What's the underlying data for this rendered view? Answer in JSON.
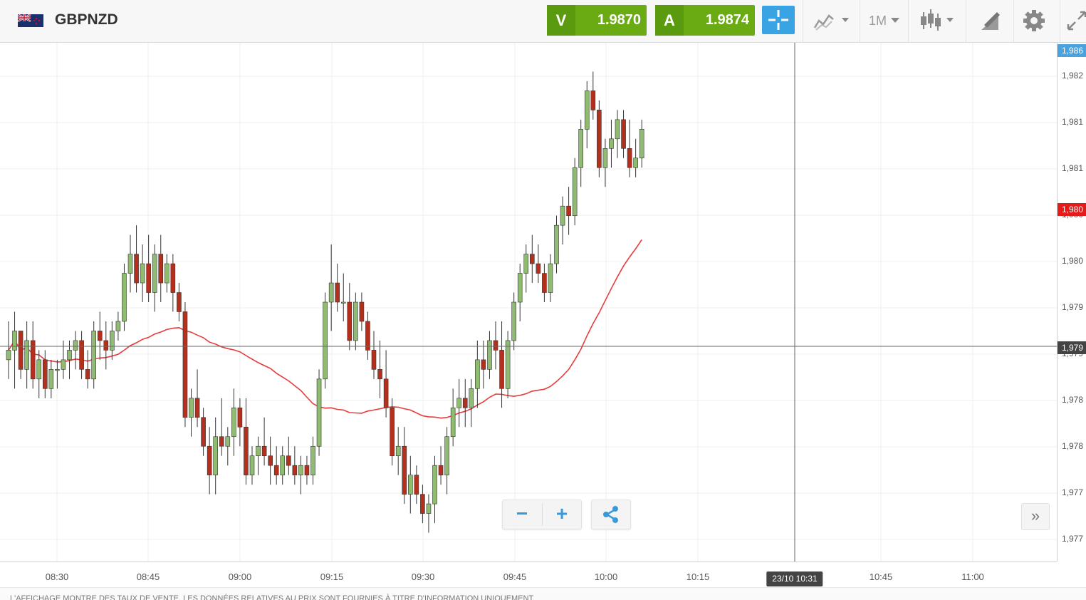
{
  "header": {
    "symbol": "GBPNZD",
    "sell_label": "V",
    "sell_price": "1.9870",
    "buy_label": "A",
    "buy_price": "1.9874",
    "timeframe": "1M"
  },
  "icons": [
    "flag-icon",
    "crosshair-icon",
    "chart-type-icon",
    "candles-icon",
    "drawing-icon",
    "gear-icon",
    "expand-icon",
    "share-icon"
  ],
  "colors": {
    "sell": "#6aaa13",
    "buy": "#6aaa13",
    "up": "#8fbc70",
    "down": "#b5301c",
    "ma": "#e83b3b",
    "ask_tag": "#4aa3df",
    "last_tag": "#e31b1b",
    "cross_tag": "#444444"
  },
  "price_axis": {
    "ticks": [
      "1,982",
      "1,981",
      "1,981",
      "1,980",
      "1,980",
      "1,979",
      "1,979",
      "1,978",
      "1,978",
      "1,977",
      "1,977"
    ],
    "ask_tag": "1,986",
    "last_tag": "1,980",
    "cross_tag": "1,979"
  },
  "time_axis": {
    "ticks": [
      "08:30",
      "08:45",
      "09:00",
      "09:15",
      "09:30",
      "09:45",
      "10:00",
      "10:15",
      "10:45",
      "11:00"
    ],
    "cursor_label": "23/10 10:31"
  },
  "zoom": {
    "minus": "−",
    "plus": "+"
  },
  "expand_label": "»",
  "footer": {
    "disclaimer": "L'AFFICHAGE MONTRE DES TAUX DE VENTE. LES DONNÉES RELATIVES AU PRIX SONT FOURNIES À TITRE D'INFORMATION UNIQUEMENT."
  },
  "chart_data": {
    "type": "candlestick",
    "interval": "1M",
    "moving_average": {
      "color": "#e83b3b"
    },
    "ohlc": [
      [
        1.9793,
        1.9797,
        1.9791,
        1.9794
      ],
      [
        1.9794,
        1.9798,
        1.979,
        1.9796
      ],
      [
        1.9796,
        1.9796,
        1.9791,
        1.9792
      ],
      [
        1.9792,
        1.9797,
        1.979,
        1.9795
      ],
      [
        1.9795,
        1.9797,
        1.979,
        1.9791
      ],
      [
        1.9791,
        1.9794,
        1.9789,
        1.9793
      ],
      [
        1.9793,
        1.9794,
        1.9789,
        1.979
      ],
      [
        1.979,
        1.9793,
        1.9789,
        1.9792
      ],
      [
        1.9792,
        1.9793,
        1.979,
        1.9792
      ],
      [
        1.9792,
        1.9795,
        1.9791,
        1.9793
      ],
      [
        1.9793,
        1.9795,
        1.9791,
        1.9794
      ],
      [
        1.9794,
        1.9796,
        1.9792,
        1.9795
      ],
      [
        1.9795,
        1.9796,
        1.9791,
        1.9792
      ],
      [
        1.9792,
        1.9794,
        1.979,
        1.9791
      ],
      [
        1.9791,
        1.9797,
        1.979,
        1.9796
      ],
      [
        1.9796,
        1.9798,
        1.9793,
        1.9795
      ],
      [
        1.9795,
        1.9797,
        1.9792,
        1.9794
      ],
      [
        1.9794,
        1.9797,
        1.9793,
        1.9796
      ],
      [
        1.9796,
        1.9798,
        1.9795,
        1.9797
      ],
      [
        1.9797,
        1.9803,
        1.9796,
        1.9802
      ],
      [
        1.9802,
        1.9806,
        1.98,
        1.9804
      ],
      [
        1.9804,
        1.9807,
        1.98,
        1.9801
      ],
      [
        1.9801,
        1.9805,
        1.9799,
        1.9803
      ],
      [
        1.9803,
        1.9806,
        1.9799,
        1.98
      ],
      [
        1.98,
        1.9805,
        1.9798,
        1.9804
      ],
      [
        1.9804,
        1.9806,
        1.9799,
        1.9801
      ],
      [
        1.9801,
        1.9804,
        1.98,
        1.9803
      ],
      [
        1.9803,
        1.9804,
        1.9798,
        1.98
      ],
      [
        1.98,
        1.9801,
        1.9797,
        1.9798
      ],
      [
        1.9798,
        1.9799,
        1.9786,
        1.9787
      ],
      [
        1.9787,
        1.979,
        1.9785,
        1.9789
      ],
      [
        1.9789,
        1.9792,
        1.9786,
        1.9787
      ],
      [
        1.9787,
        1.9788,
        1.9783,
        1.9784
      ],
      [
        1.9784,
        1.9786,
        1.9779,
        1.9781
      ],
      [
        1.9781,
        1.9787,
        1.9779,
        1.9785
      ],
      [
        1.9785,
        1.9789,
        1.9783,
        1.9784
      ],
      [
        1.9784,
        1.9786,
        1.9782,
        1.9785
      ],
      [
        1.9785,
        1.979,
        1.9783,
        1.9788
      ],
      [
        1.9788,
        1.9789,
        1.9784,
        1.9786
      ],
      [
        1.9786,
        1.9789,
        1.978,
        1.9781
      ],
      [
        1.9781,
        1.9784,
        1.978,
        1.9783
      ],
      [
        1.9783,
        1.9785,
        1.9781,
        1.9784
      ],
      [
        1.9784,
        1.9787,
        1.9782,
        1.9783
      ],
      [
        1.9783,
        1.9785,
        1.978,
        1.9782
      ],
      [
        1.9782,
        1.9784,
        1.978,
        1.9781
      ],
      [
        1.9781,
        1.9784,
        1.978,
        1.9783
      ],
      [
        1.9783,
        1.9785,
        1.9781,
        1.9782
      ],
      [
        1.9782,
        1.9784,
        1.978,
        1.9781
      ],
      [
        1.9781,
        1.9783,
        1.9779,
        1.9782
      ],
      [
        1.9782,
        1.9783,
        1.978,
        1.9781
      ],
      [
        1.9781,
        1.9785,
        1.978,
        1.9784
      ],
      [
        1.9784,
        1.9792,
        1.9783,
        1.9791
      ],
      [
        1.9791,
        1.98,
        1.979,
        1.9799
      ],
      [
        1.9799,
        1.9805,
        1.9796,
        1.9801
      ],
      [
        1.9801,
        1.9803,
        1.9798,
        1.9799
      ],
      [
        1.9799,
        1.9802,
        1.9797,
        1.9799
      ],
      [
        1.9799,
        1.9801,
        1.9794,
        1.9795
      ],
      [
        1.9795,
        1.98,
        1.9794,
        1.9799
      ],
      [
        1.9799,
        1.98,
        1.9796,
        1.9797
      ],
      [
        1.9797,
        1.9798,
        1.9793,
        1.9794
      ],
      [
        1.9794,
        1.9796,
        1.9791,
        1.9792
      ],
      [
        1.9792,
        1.9795,
        1.9789,
        1.9791
      ],
      [
        1.9791,
        1.9794,
        1.9787,
        1.9788
      ],
      [
        1.9788,
        1.9789,
        1.9782,
        1.9783
      ],
      [
        1.9783,
        1.9786,
        1.9781,
        1.9784
      ],
      [
        1.9784,
        1.9786,
        1.9778,
        1.9779
      ],
      [
        1.9779,
        1.9783,
        1.9777,
        1.9781
      ],
      [
        1.9781,
        1.9782,
        1.9778,
        1.9779
      ],
      [
        1.9779,
        1.978,
        1.9776,
        1.9777
      ],
      [
        1.9777,
        1.9779,
        1.9775,
        1.9778
      ],
      [
        1.9778,
        1.9783,
        1.9776,
        1.9782
      ],
      [
        1.9782,
        1.9784,
        1.978,
        1.9781
      ],
      [
        1.9781,
        1.9786,
        1.9779,
        1.9785
      ],
      [
        1.9785,
        1.979,
        1.9784,
        1.9788
      ],
      [
        1.9788,
        1.9791,
        1.9786,
        1.9789
      ],
      [
        1.9789,
        1.9791,
        1.9786,
        1.9788
      ],
      [
        1.9788,
        1.9791,
        1.9786,
        1.979
      ],
      [
        1.979,
        1.9795,
        1.9788,
        1.9793
      ],
      [
        1.9793,
        1.9795,
        1.979,
        1.9792
      ],
      [
        1.9792,
        1.9796,
        1.9791,
        1.9795
      ],
      [
        1.9795,
        1.9797,
        1.9792,
        1.9794
      ],
      [
        1.9794,
        1.9797,
        1.9788,
        1.979
      ],
      [
        1.979,
        1.9796,
        1.9789,
        1.9795
      ],
      [
        1.9795,
        1.98,
        1.9794,
        1.9799
      ],
      [
        1.9799,
        1.9803,
        1.9797,
        1.9802
      ],
      [
        1.9802,
        1.9805,
        1.98,
        1.9804
      ],
      [
        1.9804,
        1.9806,
        1.9801,
        1.9803
      ],
      [
        1.9803,
        1.9805,
        1.9801,
        1.9802
      ],
      [
        1.9802,
        1.9803,
        1.9799,
        1.98
      ],
      [
        1.98,
        1.9804,
        1.9799,
        1.9803
      ],
      [
        1.9803,
        1.9808,
        1.9802,
        1.9807
      ],
      [
        1.9807,
        1.981,
        1.9805,
        1.9809
      ],
      [
        1.9809,
        1.9811,
        1.9806,
        1.9808
      ],
      [
        1.9808,
        1.9814,
        1.9807,
        1.9813
      ],
      [
        1.9813,
        1.9818,
        1.9811,
        1.9817
      ],
      [
        1.9817,
        1.9822,
        1.9815,
        1.9821
      ],
      [
        1.9821,
        1.9823,
        1.9818,
        1.9819
      ],
      [
        1.9819,
        1.982,
        1.9812,
        1.9813
      ],
      [
        1.9813,
        1.9816,
        1.9811,
        1.9815
      ],
      [
        1.9815,
        1.9818,
        1.9813,
        1.9816
      ],
      [
        1.9816,
        1.9819,
        1.9814,
        1.9818
      ],
      [
        1.9818,
        1.9819,
        1.9814,
        1.9815
      ],
      [
        1.9815,
        1.9818,
        1.9812,
        1.9813
      ],
      [
        1.9813,
        1.9816,
        1.9812,
        1.9814
      ],
      [
        1.9814,
        1.9818,
        1.9813,
        1.9817
      ]
    ]
  }
}
